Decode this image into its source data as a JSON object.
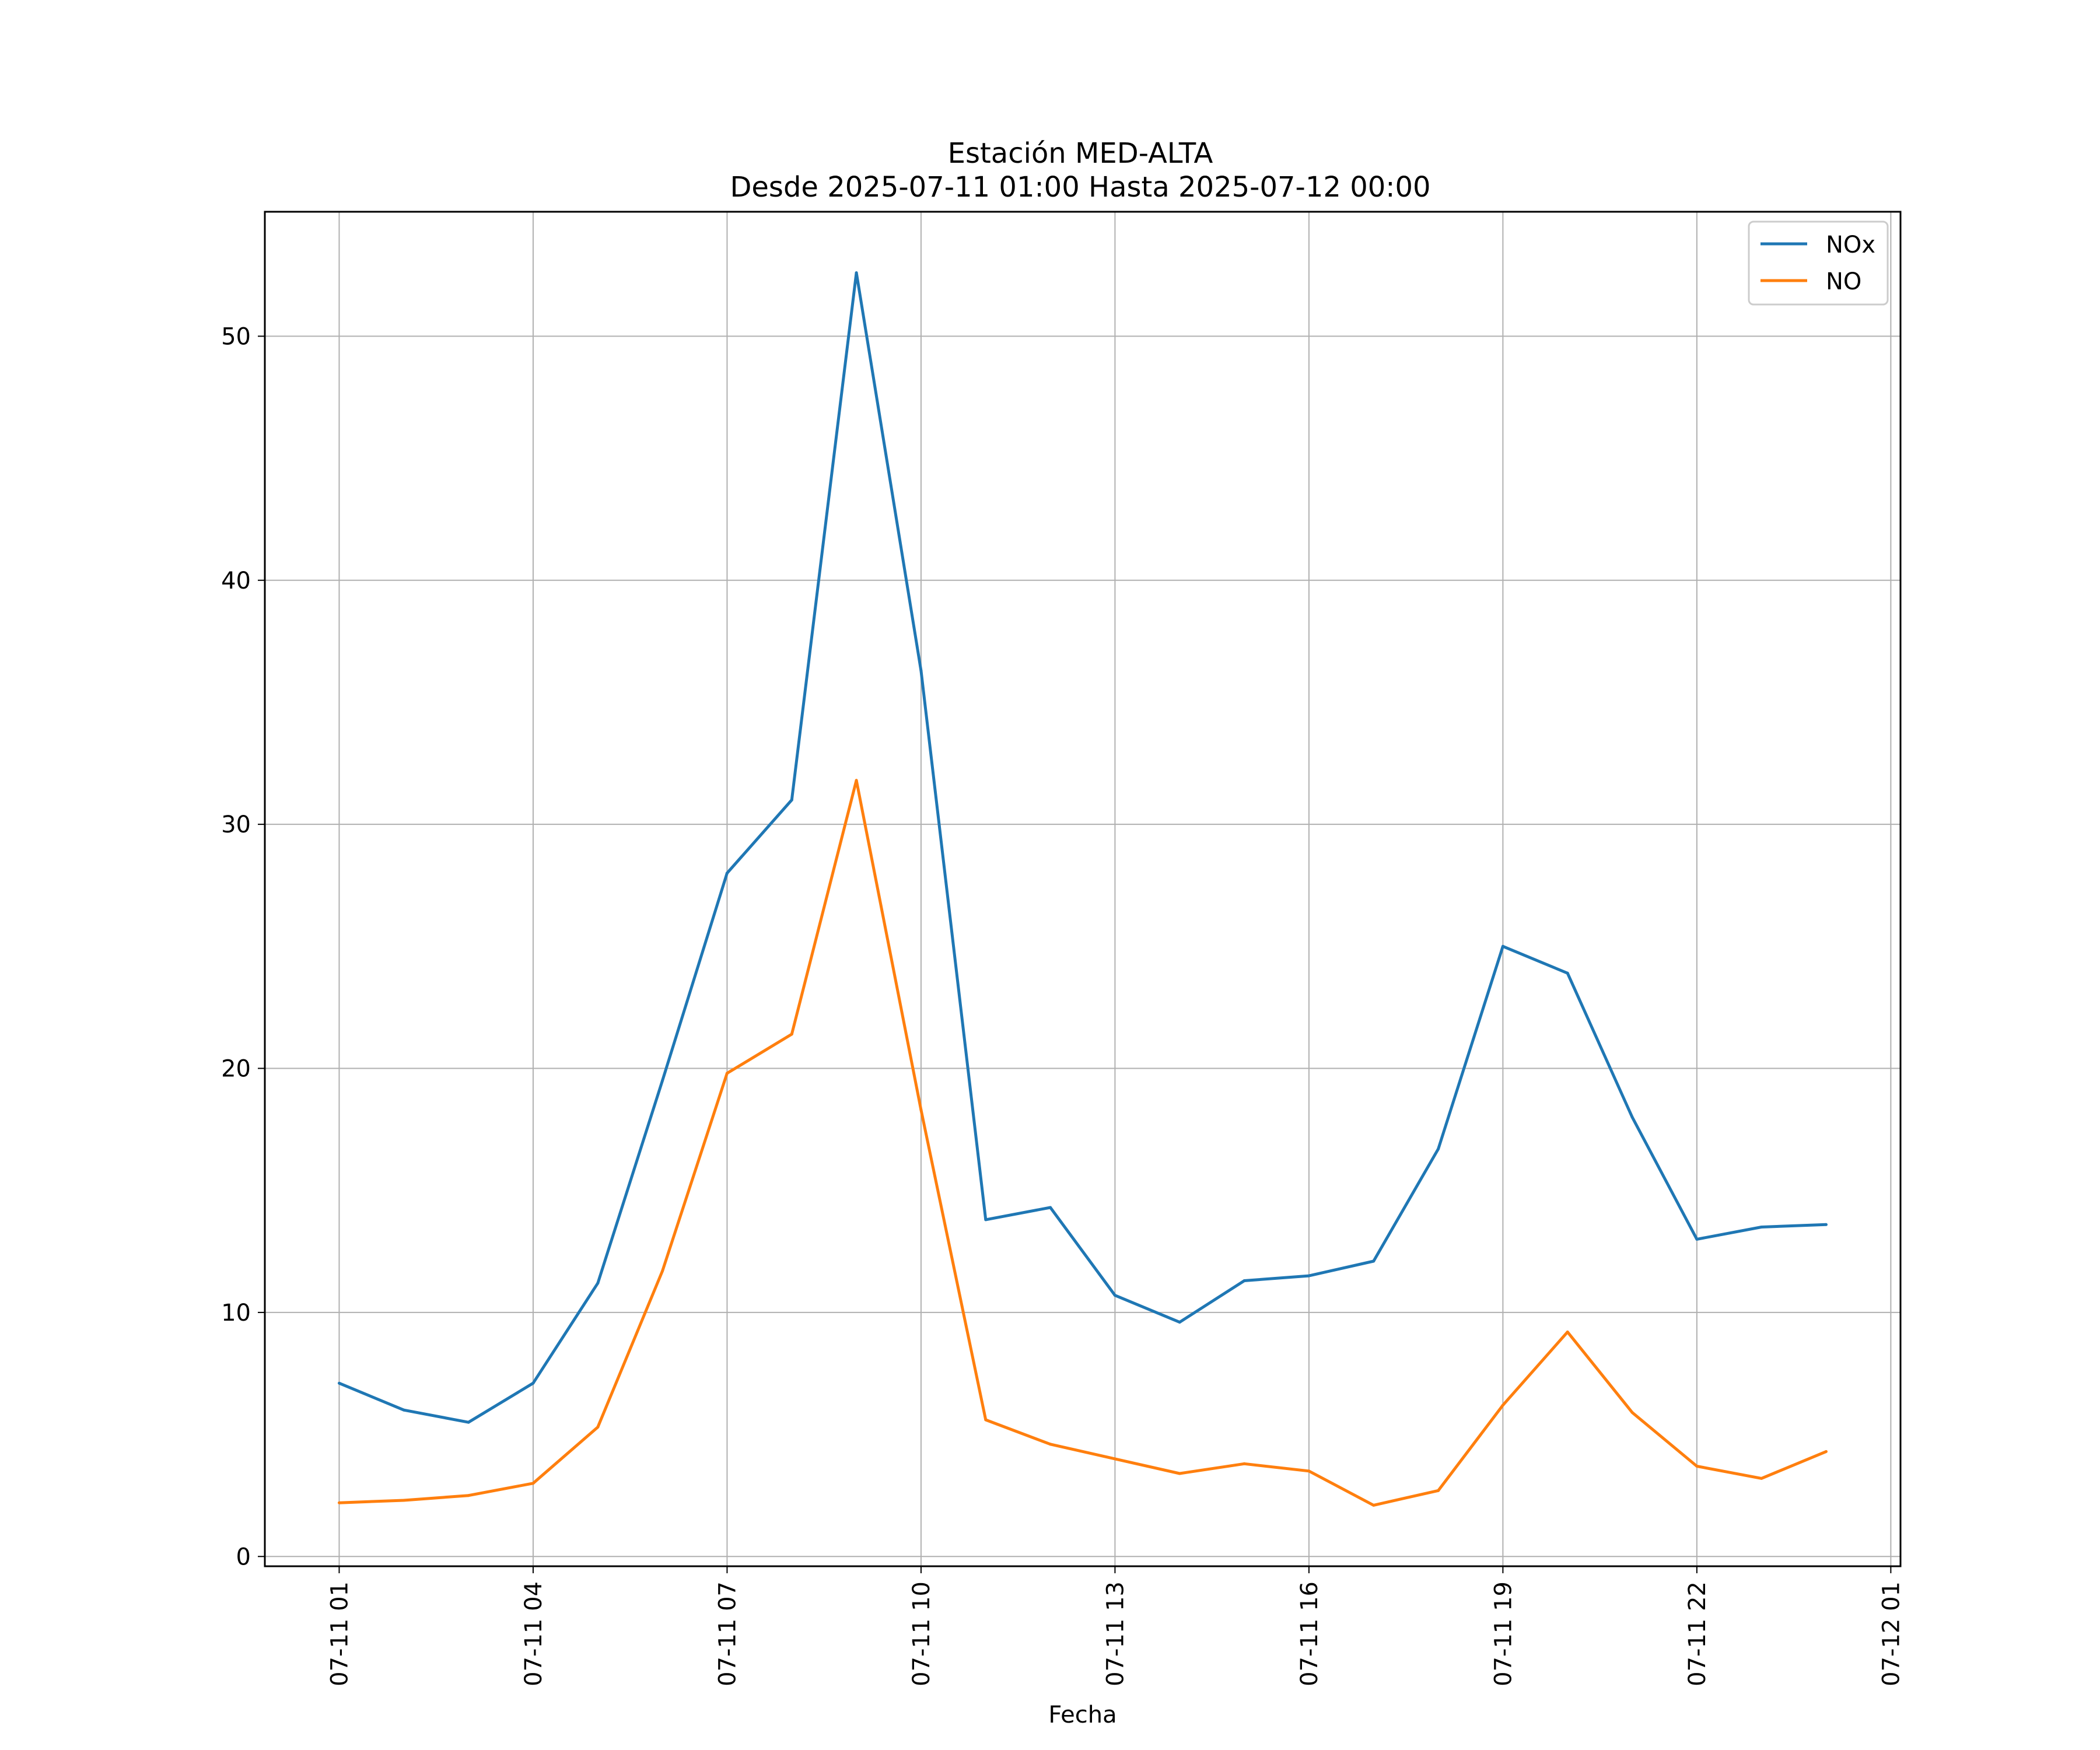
{
  "chart_data": {
    "type": "line",
    "title": "Estación MED-ALTA",
    "subtitle": "Desde 2025-07-11 01:00 Hasta 2025-07-12 00:00",
    "xlabel": "Fecha",
    "ylabel": "",
    "x": [
      "2025-07-11 01:00",
      "2025-07-11 02:00",
      "2025-07-11 03:00",
      "2025-07-11 04:00",
      "2025-07-11 05:00",
      "2025-07-11 06:00",
      "2025-07-11 07:00",
      "2025-07-11 08:00",
      "2025-07-11 09:00",
      "2025-07-11 10:00",
      "2025-07-11 11:00",
      "2025-07-11 12:00",
      "2025-07-11 13:00",
      "2025-07-11 14:00",
      "2025-07-11 15:00",
      "2025-07-11 16:00",
      "2025-07-11 17:00",
      "2025-07-11 18:00",
      "2025-07-11 19:00",
      "2025-07-11 20:00",
      "2025-07-11 21:00",
      "2025-07-11 22:00",
      "2025-07-11 23:00",
      "2025-07-12 00:00"
    ],
    "series": [
      {
        "name": "NOx",
        "color": "#1f77b4",
        "values": [
          7.1,
          6.0,
          5.5,
          7.1,
          11.2,
          19.5,
          28.0,
          31.0,
          52.6,
          36.3,
          13.8,
          14.3,
          10.7,
          9.6,
          11.3,
          11.5,
          12.1,
          16.7,
          25.0,
          23.9,
          18.0,
          13.0,
          13.5,
          13.6
        ]
      },
      {
        "name": "NO",
        "color": "#ff7f0e",
        "values": [
          2.2,
          2.3,
          2.5,
          3.0,
          5.3,
          11.7,
          19.8,
          21.4,
          31.8,
          18.3,
          5.6,
          4.6,
          4.0,
          3.4,
          3.8,
          3.5,
          2.1,
          2.7,
          6.2,
          9.2,
          5.9,
          3.7,
          3.2,
          4.3
        ]
      }
    ],
    "x_ticks": [
      "07-11 01",
      "07-11 04",
      "07-11 07",
      "07-11 10",
      "07-11 13",
      "07-11 16",
      "07-11 19",
      "07-11 22",
      "07-12 01"
    ],
    "y_ticks": [
      "0",
      "10",
      "20",
      "30",
      "40",
      "50"
    ],
    "xlim": [
      "2025-07-10 23:51",
      "2025-07-12 01:09"
    ],
    "ylim": [
      -0.4,
      55.1
    ],
    "grid": true,
    "legend_position": "top-right"
  }
}
